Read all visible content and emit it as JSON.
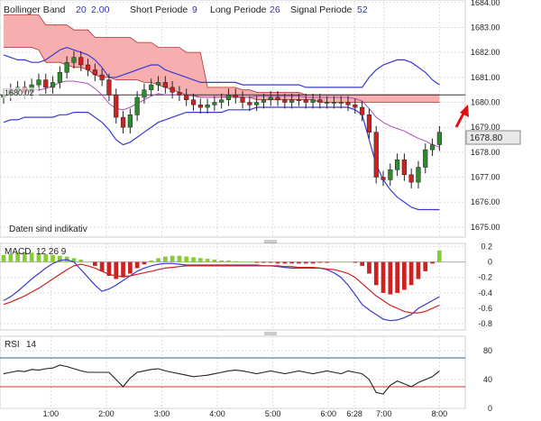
{
  "header": {
    "bollinger_label": "Bollinger Band",
    "bollinger_period": "20",
    "bollinger_dev": "2.00",
    "short_label": "Short Periode",
    "short_value": "9",
    "long_label": "Long Periode",
    "long_value": "26",
    "signal_label": "Signal Periode",
    "signal_value": "52"
  },
  "indicative_note": "Daten sind indikativ",
  "last_price_tag": "1678.80",
  "left_price_tag": "1680.02",
  "macd_panel": {
    "label": "MACD",
    "params": "12 26 9"
  },
  "rsi_panel": {
    "label": "RSI",
    "period": "14"
  },
  "colors": {
    "cloud": "#f4a0a0",
    "bollinger": "#3a3ad0",
    "candle_up": "#2e8a2e",
    "candle_down": "#cc2222",
    "macd_hist_pos": "#88cc33",
    "macd_hist_neg": "#cc2222",
    "rsi_line": "#222222",
    "rsi_upper": "#336699",
    "rsi_lower": "#cc3333",
    "arrow": "#dd1111"
  },
  "chart_data": [
    {
      "type": "candlestick",
      "title": "",
      "ylim": [
        1674.6,
        1684.1
      ],
      "y_ticks": [
        "1684.00",
        "1683.00",
        "1682.00",
        "1681.00",
        "1680.00",
        "1679.00",
        "1678.00",
        "1677.00",
        "1676.00",
        "1675.00"
      ],
      "x_ticks": [
        "1:00",
        "2:00",
        "3:00",
        "4:00",
        "5:00",
        "6:00",
        "6:28",
        "7:00",
        "8:00"
      ],
      "x_tick_hours": [
        1.0,
        2.0,
        3.0,
        4.0,
        5.0,
        6.0,
        6.47,
        7.0,
        8.0
      ],
      "xlim_hours": [
        0.15,
        8.4
      ],
      "current_price": 1678.8,
      "reference_level": 1680.3,
      "close": [
        1680.3,
        1680.5,
        1680.6,
        1680.4,
        1680.7,
        1680.9,
        1680.6,
        1680.8,
        1681.2,
        1681.6,
        1681.8,
        1681.5,
        1681.3,
        1681.1,
        1680.9,
        1680.3,
        1679.4,
        1679.0,
        1679.5,
        1680.2,
        1680.5,
        1680.7,
        1680.8,
        1680.6,
        1680.4,
        1680.3,
        1680.1,
        1679.9,
        1679.8,
        1679.9,
        1680.0,
        1680.1,
        1680.3,
        1680.2,
        1680.0,
        1679.9,
        1680.0,
        1680.1,
        1680.2,
        1680.1,
        1680.0,
        1680.1,
        1680.1,
        1680.0,
        1680.1,
        1680.0,
        1680.0,
        1680.0,
        1680.0,
        1679.9,
        1679.8,
        1679.5,
        1678.8,
        1677.0,
        1676.9,
        1677.3,
        1677.7,
        1677.1,
        1676.8,
        1677.4,
        1678.1,
        1678.3,
        1678.8
      ],
      "upper_band": [
        1681.9,
        1681.8,
        1681.7,
        1681.7,
        1681.6,
        1681.6,
        1681.7,
        1681.9,
        1682.1,
        1682.2,
        1682.1,
        1682.0,
        1681.9,
        1681.7,
        1681.4,
        1681.0,
        1681.0,
        1681.1,
        1681.2,
        1681.3,
        1681.4,
        1681.5,
        1681.5,
        1681.3,
        1681.2,
        1681.1,
        1681.0,
        1680.9,
        1680.8,
        1680.8,
        1680.8,
        1680.8,
        1680.8,
        1680.8,
        1680.7,
        1680.7,
        1680.7,
        1680.7,
        1680.7,
        1680.7,
        1680.7,
        1680.7,
        1680.7,
        1680.6,
        1680.6,
        1680.6,
        1680.6,
        1680.6,
        1680.6,
        1680.6,
        1680.6,
        1680.6,
        1681.0,
        1681.3,
        1681.5,
        1681.6,
        1681.7,
        1681.7,
        1681.6,
        1681.4,
        1681.2,
        1680.9,
        1680.7
      ],
      "lower_band": [
        1679.2,
        1679.3,
        1679.3,
        1679.4,
        1679.4,
        1679.4,
        1679.4,
        1679.4,
        1679.5,
        1679.5,
        1679.6,
        1679.6,
        1679.6,
        1679.4,
        1679.2,
        1678.9,
        1678.5,
        1678.3,
        1678.4,
        1678.6,
        1678.8,
        1679.0,
        1679.2,
        1679.3,
        1679.4,
        1679.5,
        1679.6,
        1679.6,
        1679.6,
        1679.6,
        1679.6,
        1679.6,
        1679.7,
        1679.7,
        1679.7,
        1679.7,
        1679.8,
        1679.8,
        1679.8,
        1679.8,
        1679.8,
        1679.8,
        1679.8,
        1679.8,
        1679.8,
        1679.8,
        1679.8,
        1679.8,
        1679.8,
        1679.8,
        1679.7,
        1679.5,
        1678.5,
        1677.5,
        1676.9,
        1676.5,
        1676.2,
        1676.0,
        1675.8,
        1675.7,
        1675.7,
        1675.7,
        1675.7
      ],
      "cloud_top": [
        1683.5,
        1683.5,
        1683.5,
        1683.5,
        1683.5,
        1683.5,
        1683.1,
        1683.1,
        1683.1,
        1683.1,
        1682.9,
        1682.9,
        1682.9,
        1682.6,
        1682.6,
        1682.6,
        1682.6,
        1682.6,
        1682.6,
        1682.4,
        1682.4,
        1682.4,
        1682.2,
        1682.2,
        1682.2,
        1682.2,
        1682.0,
        1682.0,
        1682.0,
        1680.6,
        1680.6,
        1680.6,
        1680.6,
        1680.6,
        1680.5,
        1680.5,
        1680.4,
        1680.4,
        1680.4,
        1680.4,
        1680.4,
        1680.4,
        1680.4,
        1680.3,
        1680.3,
        1680.3,
        1680.3,
        1680.3,
        1680.3,
        1680.3,
        1680.3,
        1680.3,
        1680.3,
        1680.3,
        1680.3,
        1680.3,
        1680.3,
        1680.3,
        1680.3,
        1680.3,
        1680.3,
        1680.3,
        1680.3
      ],
      "cloud_bottom": [
        1682.2,
        1682.2,
        1682.2,
        1682.2,
        1682.2,
        1682.1,
        1681.6,
        1681.6,
        1681.6,
        1681.5,
        1681.4,
        1681.4,
        1681.3,
        1681.1,
        1681.0,
        1681.0,
        1680.9,
        1680.9,
        1680.9,
        1680.9,
        1680.8,
        1680.8,
        1680.7,
        1680.6,
        1680.5,
        1680.4,
        1680.3,
        1680.3,
        1680.2,
        1680.2,
        1680.2,
        1680.2,
        1680.2,
        1680.2,
        1680.2,
        1680.2,
        1680.1,
        1680.1,
        1680.1,
        1680.1,
        1680.1,
        1680.1,
        1680.1,
        1680.1,
        1680.1,
        1680.0,
        1680.0,
        1680.0,
        1680.0,
        1680.0,
        1680.0,
        1680.0,
        1680.0,
        1680.0,
        1680.0,
        1680.0,
        1680.0,
        1680.0,
        1680.0,
        1680.0,
        1680.0,
        1680.0,
        1680.0
      ]
    },
    {
      "type": "bar+line",
      "title": "MACD 12 26 9",
      "ylim": [
        -0.88,
        0.24
      ],
      "y_ticks": [
        "0.2",
        "0",
        "-0.2",
        "-0.4",
        "-0.6",
        "-0.8"
      ],
      "y_tick_values": [
        0.2,
        0,
        -0.2,
        -0.4,
        -0.6,
        -0.8
      ],
      "histogram": [
        0.09,
        0.1,
        0.12,
        0.13,
        0.12,
        0.11,
        0.1,
        0.09,
        0.08,
        0.07,
        0.05,
        0.03,
        0.0,
        -0.05,
        -0.12,
        -0.18,
        -0.22,
        -0.2,
        -0.15,
        -0.08,
        -0.03,
        0.02,
        0.05,
        0.07,
        0.08,
        0.08,
        0.07,
        0.06,
        0.05,
        0.04,
        0.03,
        0.02,
        0.02,
        0.01,
        0.0,
        0.0,
        -0.01,
        -0.01,
        -0.01,
        -0.02,
        -0.02,
        -0.02,
        -0.02,
        -0.02,
        -0.02,
        -0.01,
        -0.01,
        0.0,
        0.0,
        0.0,
        -0.01,
        -0.05,
        -0.15,
        -0.3,
        -0.4,
        -0.42,
        -0.4,
        -0.36,
        -0.3,
        -0.22,
        -0.12,
        -0.02,
        0.15
      ],
      "macd": [
        -0.5,
        -0.45,
        -0.38,
        -0.3,
        -0.22,
        -0.15,
        -0.08,
        -0.02,
        0.02,
        0.03,
        0.0,
        -0.1,
        -0.2,
        -0.3,
        -0.38,
        -0.35,
        -0.3,
        -0.24,
        -0.18,
        -0.12,
        -0.08,
        -0.05,
        -0.03,
        -0.02,
        -0.02,
        -0.03,
        -0.04,
        -0.04,
        -0.04,
        -0.04,
        -0.04,
        -0.04,
        -0.04,
        -0.04,
        -0.04,
        -0.04,
        -0.04,
        -0.05,
        -0.05,
        -0.06,
        -0.07,
        -0.08,
        -0.08,
        -0.08,
        -0.08,
        -0.08,
        -0.1,
        -0.14,
        -0.2,
        -0.3,
        -0.42,
        -0.55,
        -0.62,
        -0.68,
        -0.74,
        -0.76,
        -0.75,
        -0.72,
        -0.68,
        -0.6,
        -0.55,
        -0.5,
        -0.45
      ],
      "signal": [
        -0.55,
        -0.52,
        -0.48,
        -0.44,
        -0.39,
        -0.34,
        -0.28,
        -0.22,
        -0.16,
        -0.1,
        -0.05,
        -0.03,
        -0.05,
        -0.08,
        -0.12,
        -0.16,
        -0.18,
        -0.19,
        -0.18,
        -0.16,
        -0.14,
        -0.12,
        -0.1,
        -0.08,
        -0.07,
        -0.06,
        -0.05,
        -0.05,
        -0.05,
        -0.05,
        -0.05,
        -0.05,
        -0.05,
        -0.05,
        -0.05,
        -0.05,
        -0.05,
        -0.05,
        -0.05,
        -0.05,
        -0.06,
        -0.06,
        -0.07,
        -0.07,
        -0.07,
        -0.08,
        -0.09,
        -0.1,
        -0.12,
        -0.15,
        -0.2,
        -0.28,
        -0.36,
        -0.44,
        -0.5,
        -0.56,
        -0.6,
        -0.64,
        -0.66,
        -0.66,
        -0.64,
        -0.6,
        -0.56
      ]
    },
    {
      "type": "line",
      "title": "RSI 14",
      "ylim": [
        0,
        100
      ],
      "y_ticks": [
        "80",
        "40",
        "0"
      ],
      "y_tick_values": [
        80,
        40,
        0
      ],
      "upper_level": 70,
      "lower_level": 30,
      "rsi": [
        48,
        50,
        52,
        51,
        54,
        53,
        55,
        56,
        60,
        58,
        55,
        52,
        50,
        50,
        50,
        50,
        40,
        30,
        42,
        50,
        52,
        54,
        55,
        52,
        50,
        48,
        46,
        44,
        45,
        46,
        48,
        50,
        52,
        53,
        52,
        50,
        48,
        50,
        52,
        50,
        48,
        50,
        52,
        50,
        48,
        50,
        52,
        50,
        48,
        52,
        50,
        48,
        40,
        22,
        20,
        32,
        38,
        34,
        30,
        36,
        40,
        44,
        52
      ]
    }
  ]
}
